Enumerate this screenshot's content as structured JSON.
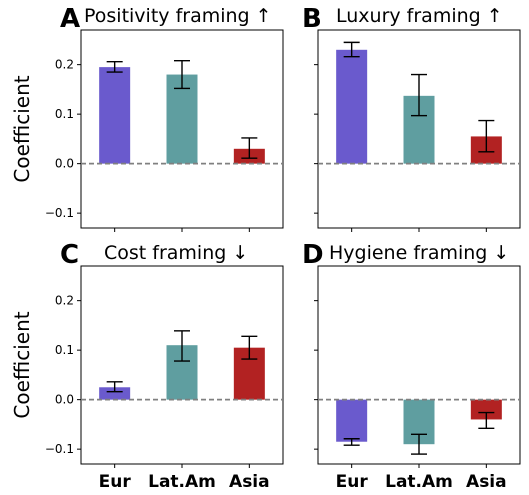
{
  "chart_data": [
    {
      "type": "bar",
      "panel_letter": "A",
      "title": "Positivity framing ↑",
      "ylabel": "Coefficient",
      "categories": [
        "Eur",
        "Lat.Am",
        "Asia"
      ],
      "values": [
        0.195,
        0.18,
        0.03
      ],
      "error_low": [
        0.185,
        0.152,
        0.011
      ],
      "error_high": [
        0.206,
        0.208,
        0.052
      ],
      "bar_colors": [
        "#6a5acd",
        "#5f9ea0",
        "#b22222"
      ],
      "ylim": [
        -0.13,
        0.27
      ],
      "yticks": [
        "−0.1",
        "0.0",
        "0.1",
        "0.2"
      ],
      "show_xticks": false
    },
    {
      "type": "bar",
      "panel_letter": "B",
      "title": "Luxury framing ↑",
      "ylabel": "",
      "categories": [
        "Eur",
        "Lat.Am",
        "Asia"
      ],
      "values": [
        0.23,
        0.137,
        0.055
      ],
      "error_low": [
        0.216,
        0.097,
        0.024
      ],
      "error_high": [
        0.245,
        0.18,
        0.087
      ],
      "bar_colors": [
        "#6a5acd",
        "#5f9ea0",
        "#b22222"
      ],
      "ylim": [
        -0.13,
        0.27
      ],
      "yticks": [],
      "show_xticks": false
    },
    {
      "type": "bar",
      "panel_letter": "C",
      "title": "Cost framing ↓",
      "ylabel": "Coefficient",
      "categories": [
        "Eur",
        "Lat.Am",
        "Asia"
      ],
      "values": [
        0.025,
        0.11,
        0.105
      ],
      "error_low": [
        0.016,
        0.078,
        0.082
      ],
      "error_high": [
        0.036,
        0.139,
        0.128
      ],
      "bar_colors": [
        "#6a5acd",
        "#5f9ea0",
        "#b22222"
      ],
      "ylim": [
        -0.13,
        0.27
      ],
      "yticks": [
        "−0.1",
        "0.0",
        "0.1",
        "0.2"
      ],
      "show_xticks": true
    },
    {
      "type": "bar",
      "panel_letter": "D",
      "title": "Hygiene framing ↓",
      "ylabel": "",
      "categories": [
        "Eur",
        "Lat.Am",
        "Asia"
      ],
      "values": [
        -0.085,
        -0.09,
        -0.04
      ],
      "error_low": [
        -0.092,
        -0.11,
        -0.058
      ],
      "error_high": [
        -0.079,
        -0.07,
        -0.026
      ],
      "bar_colors": [
        "#6a5acd",
        "#5f9ea0",
        "#b22222"
      ],
      "ylim": [
        -0.13,
        0.27
      ],
      "yticks": [],
      "show_xticks": true
    }
  ]
}
